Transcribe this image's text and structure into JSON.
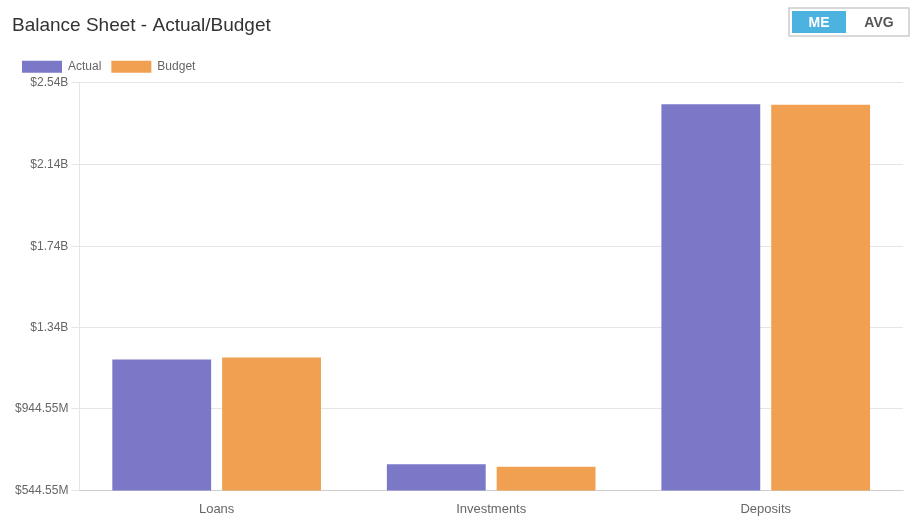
{
  "chart_data": {
    "type": "bar",
    "title": "Balance Sheet - Actual/Budget",
    "categories": [
      "Loans",
      "Investments",
      "Deposits"
    ],
    "series": [
      {
        "name": "Actual",
        "color": "#7b78c8",
        "values": [
          1185000000,
          672000000,
          2435000000
        ]
      },
      {
        "name": "Budget",
        "color": "#f0a050",
        "values": [
          1195000000,
          660000000,
          2433000000
        ]
      }
    ],
    "ylim": [
      544550000,
      2540000000
    ],
    "yticks": [
      {
        "value": 544550000,
        "label": "$544.55M"
      },
      {
        "value": 944550000,
        "label": "$944.55M"
      },
      {
        "value": 1340000000,
        "label": "$1.34B"
      },
      {
        "value": 1740000000,
        "label": "$1.74B"
      },
      {
        "value": 2140000000,
        "label": "$2.14B"
      },
      {
        "value": 2540000000,
        "label": "$2.54B"
      }
    ],
    "grid": true,
    "legend": "upper left",
    "annotations": [
      "ME",
      "AVG"
    ]
  }
}
